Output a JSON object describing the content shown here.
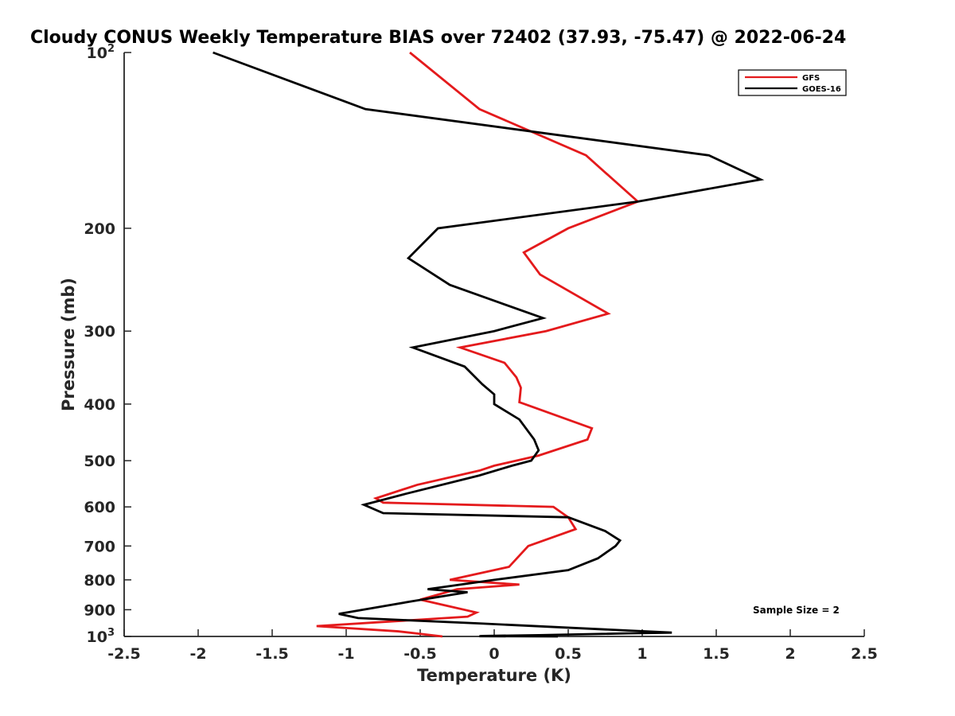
{
  "chart_data": {
    "type": "line",
    "title": "Cloudy CONUS Weekly Temperature BIAS over 72402 (37.93, -75.47) @ 2022-06-24",
    "xlabel": "Temperature (K)",
    "ylabel": "Pressure (mb)",
    "xlim": [
      -2.5,
      2.5
    ],
    "ylim": [
      100,
      1000
    ],
    "y_scale": "log",
    "y_reversed": true,
    "grid": false,
    "legend_position": "top-right",
    "x_ticks": [
      {
        "value": -2.5,
        "label": "-2.5"
      },
      {
        "value": -2,
        "label": "-2"
      },
      {
        "value": -1.5,
        "label": "-1.5"
      },
      {
        "value": -1,
        "label": "-1"
      },
      {
        "value": -0.5,
        "label": "-0.5"
      },
      {
        "value": 0,
        "label": "0"
      },
      {
        "value": 0.5,
        "label": "0.5"
      },
      {
        "value": 1,
        "label": "1"
      },
      {
        "value": 1.5,
        "label": "1.5"
      },
      {
        "value": 2,
        "label": "2"
      },
      {
        "value": 2.5,
        "label": "2.5"
      }
    ],
    "y_ticks": [
      {
        "value": 100,
        "base": "10",
        "exp": "2"
      },
      {
        "value": 200,
        "base": "200",
        "exp": ""
      },
      {
        "value": 300,
        "base": "300",
        "exp": ""
      },
      {
        "value": 400,
        "base": "400",
        "exp": ""
      },
      {
        "value": 500,
        "base": "500",
        "exp": ""
      },
      {
        "value": 600,
        "base": "600",
        "exp": ""
      },
      {
        "value": 700,
        "base": "700",
        "exp": ""
      },
      {
        "value": 800,
        "base": "800",
        "exp": ""
      },
      {
        "value": 900,
        "base": "900",
        "exp": ""
      },
      {
        "value": 1000,
        "base": "10",
        "exp": "3"
      }
    ],
    "series": [
      {
        "name": "GFS",
        "color": "#e41a1c",
        "points": [
          [
            -0.57,
            100
          ],
          [
            -0.1,
            125
          ],
          [
            0.62,
            150
          ],
          [
            0.97,
            180
          ],
          [
            0.5,
            200
          ],
          [
            0.2,
            220
          ],
          [
            0.31,
            240
          ],
          [
            0.77,
            280
          ],
          [
            0.35,
            300
          ],
          [
            -0.23,
            320
          ],
          [
            0.07,
            340
          ],
          [
            0.15,
            360
          ],
          [
            0.18,
            375
          ],
          [
            0.17,
            397
          ],
          [
            0.66,
            440
          ],
          [
            0.63,
            460
          ],
          [
            0.3,
            490
          ],
          [
            0,
            510
          ],
          [
            -0.1,
            520
          ],
          [
            -0.52,
            550
          ],
          [
            -0.8,
            580
          ],
          [
            -0.75,
            590
          ],
          [
            0.4,
            600
          ],
          [
            0.5,
            625
          ],
          [
            0.55,
            655
          ],
          [
            0.23,
            700
          ],
          [
            0.1,
            760
          ],
          [
            -0.3,
            800
          ],
          [
            0.17,
            815
          ],
          [
            -0.25,
            830
          ],
          [
            -0.5,
            865
          ],
          [
            -0.12,
            910
          ],
          [
            -0.18,
            925
          ],
          [
            -1.2,
            960
          ],
          [
            -0.65,
            980
          ],
          [
            -0.35,
            1000
          ]
        ]
      },
      {
        "name": "GOES-16",
        "color": "#000000",
        "points": [
          [
            -1.9,
            100
          ],
          [
            -0.87,
            125
          ],
          [
            1.45,
            150
          ],
          [
            1.8,
            165
          ],
          [
            0.97,
            180
          ],
          [
            -0.38,
            200
          ],
          [
            -0.58,
            225
          ],
          [
            -0.3,
            250
          ],
          [
            0.33,
            285
          ],
          [
            0,
            300
          ],
          [
            -0.55,
            320
          ],
          [
            -0.2,
            345
          ],
          [
            -0.08,
            370
          ],
          [
            0,
            385
          ],
          [
            0,
            400
          ],
          [
            0.17,
            425
          ],
          [
            0.27,
            460
          ],
          [
            0.3,
            480
          ],
          [
            0.25,
            500
          ],
          [
            0.12,
            510
          ],
          [
            -0.1,
            530
          ],
          [
            -0.6,
            570
          ],
          [
            -0.88,
            595
          ],
          [
            -0.75,
            615
          ],
          [
            0.5,
            625
          ],
          [
            0.75,
            660
          ],
          [
            0.85,
            685
          ],
          [
            0.82,
            700
          ],
          [
            0.7,
            735
          ],
          [
            0.5,
            770
          ],
          [
            0,
            800
          ],
          [
            -0.45,
            830
          ],
          [
            -0.18,
            840
          ],
          [
            -0.55,
            870
          ],
          [
            -1.05,
            915
          ],
          [
            -0.92,
            930
          ],
          [
            -0.1,
            950
          ],
          [
            0.65,
            970
          ],
          [
            1.2,
            985
          ],
          [
            0.9,
            988
          ],
          [
            0.3,
            995
          ],
          [
            -0.08,
            998
          ],
          [
            -0.1,
            999
          ],
          [
            0.43,
            1000
          ]
        ]
      }
    ],
    "annotation": "Sample Size = 2"
  }
}
